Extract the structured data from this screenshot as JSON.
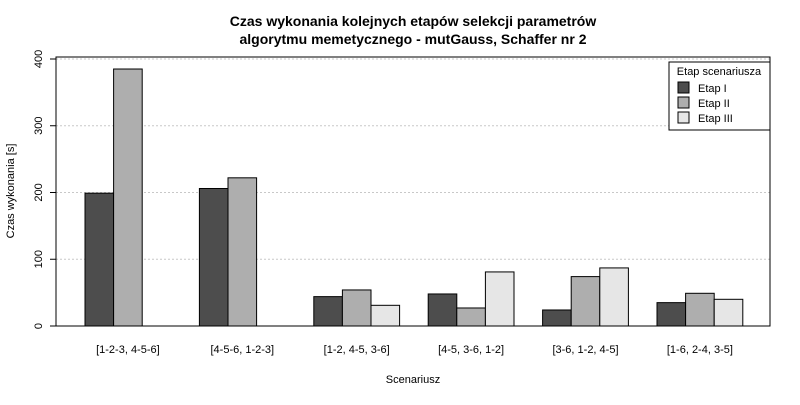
{
  "chart_data": {
    "type": "bar",
    "title_line1": "Czas wykonania kolejnych etapów selekcji parametrów",
    "title_line2": "algorytmu memetycznego - mutGauss, Schaffer nr 2",
    "xlabel": "Scenariusz",
    "ylabel": "Czas wykonania [s]",
    "ylim": [
      0,
      400
    ],
    "yticks": [
      0,
      100,
      200,
      300,
      400
    ],
    "grid": "horizontal dotted",
    "legend_placement": "top-right",
    "legend_title": "Etap scenariusza",
    "categories": [
      "[1-2-3, 4-5-6]",
      "[4-5-6, 1-2-3]",
      "[1-2, 4-5, 3-6]",
      "[4-5, 3-6, 1-2]",
      "[3-6, 1-2, 4-5]",
      "[1-6, 2-4, 3-5]"
    ],
    "series": [
      {
        "name": "Etap I",
        "color": "#4d4d4d",
        "values": [
          199,
          206,
          44,
          48,
          24,
          35
        ]
      },
      {
        "name": "Etap II",
        "color": "#aeaeae",
        "values": [
          385,
          222,
          54,
          27,
          74,
          49
        ]
      },
      {
        "name": "Etap III",
        "color": "#e6e6e6",
        "values": [
          null,
          null,
          31,
          81,
          87,
          40
        ]
      }
    ]
  }
}
